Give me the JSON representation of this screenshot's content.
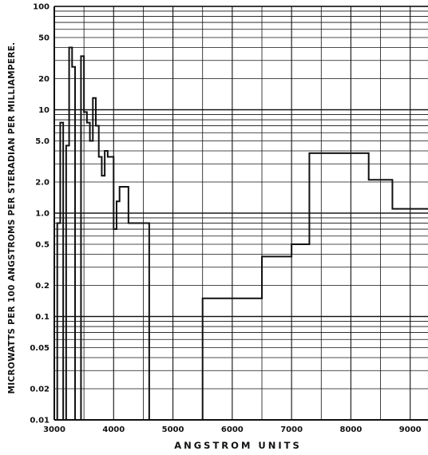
{
  "chart_data": {
    "type": "line",
    "step": true,
    "xlabel": "ANGSTROM UNITS",
    "ylabel": "MICROWATTS PER 100 ANGSTROMS PER STERADIAN PER MILLIAMPERE.",
    "xlim": [
      3000,
      9300
    ],
    "ylim": [
      0.01,
      100
    ],
    "yscale": "log",
    "grid": true,
    "x_ticks": [
      "3000",
      "4000",
      "5000",
      "6000",
      "7000",
      "8000",
      "9000"
    ],
    "x_tick_values": [
      3000,
      4000,
      5000,
      6000,
      7000,
      8000,
      9000
    ],
    "y_ticks": [
      "100",
      "50",
      "20",
      "10",
      "5.0",
      "2.0",
      "1.0",
      "0.5",
      "0.2",
      "0.1",
      "0.05",
      "0.02",
      "0.01"
    ],
    "y_tick_values": [
      100,
      50,
      20,
      10,
      5,
      2,
      1,
      0.5,
      0.2,
      0.1,
      0.05,
      0.02,
      0.01
    ],
    "series": [
      {
        "x": [
          3050,
          3100,
          3150,
          3200,
          3250,
          3300,
          3350,
          3400,
          3450,
          3500,
          3550,
          3600,
          3650,
          3700,
          3750,
          3800,
          3850,
          3900,
          3950,
          4000,
          4050,
          4100,
          4150,
          4200,
          4250,
          4300,
          4350,
          4400,
          4450,
          4500,
          4550,
          4600,
          4650,
          4700,
          5000,
          5500,
          5600,
          6000,
          6500,
          6600,
          7000,
          7300,
          7400,
          8000,
          8300,
          8400,
          8700,
          8800,
          9000,
          9300
        ],
        "y": [
          0.8,
          7.5,
          0.01,
          4.5,
          40,
          26,
          0.01,
          0.01,
          33,
          9.5,
          7.5,
          5.0,
          13,
          7.0,
          3.5,
          2.3,
          4.0,
          3.5,
          3.5,
          0.7,
          1.3,
          1.8,
          1.8,
          1.8,
          0.8,
          0.8,
          0.8,
          0.8,
          0.8,
          0.8,
          0.8,
          0.01,
          0.01,
          0.01,
          0.01,
          0.15,
          0.15,
          0.15,
          0.38,
          0.38,
          0.5,
          3.8,
          3.8,
          3.8,
          2.1,
          2.1,
          1.1,
          1.1,
          1.1,
          1.1
        ]
      }
    ],
    "colors": {
      "line": "#111111",
      "grid": "#111111",
      "background": "#ffffff"
    }
  }
}
